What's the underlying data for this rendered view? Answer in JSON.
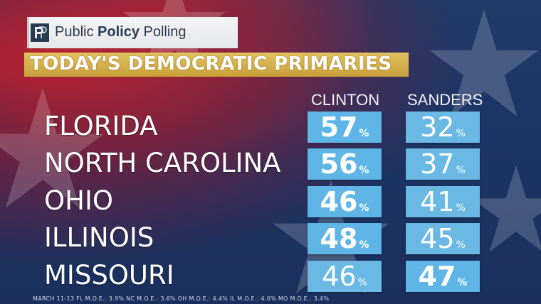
{
  "header": {
    "brand_regular_1": "Public ",
    "brand_bold": "Policy",
    "brand_regular_2": " Polling",
    "logo_icon": "ppp-logo-icon"
  },
  "title": "TODAY'S DEMOCRATIC PRIMARIES",
  "colors": {
    "winner_box": "#5fb5e6",
    "winner_text": "#ffffff",
    "other_box": "#6ab8e4",
    "other_text": "#ffffff",
    "title_bar": "#d6b24c"
  },
  "chart_data": {
    "type": "table",
    "title": "TODAY'S DEMOCRATIC PRIMARIES",
    "columns": [
      "CLINTON",
      "SANDERS"
    ],
    "unit": "%",
    "rows": [
      {
        "state": "FLORIDA",
        "values": [
          57,
          32
        ],
        "leader": 0
      },
      {
        "state": "NORTH CAROLINA",
        "values": [
          56,
          37
        ],
        "leader": 0
      },
      {
        "state": "OHIO",
        "values": [
          46,
          41
        ],
        "leader": 0
      },
      {
        "state": "ILLINOIS",
        "values": [
          48,
          45
        ],
        "leader": 0
      },
      {
        "state": "MISSOURI",
        "values": [
          46,
          47
        ],
        "leader": 1
      }
    ]
  },
  "footnote": "MARCH 11-13  FL M.O.E.: 3.9%  NC M.O.E.: 3.6%  OH M.O.E.: 4.4%  IL M.O.E.: 4.0%  MO M.O.E.: 3.4%"
}
